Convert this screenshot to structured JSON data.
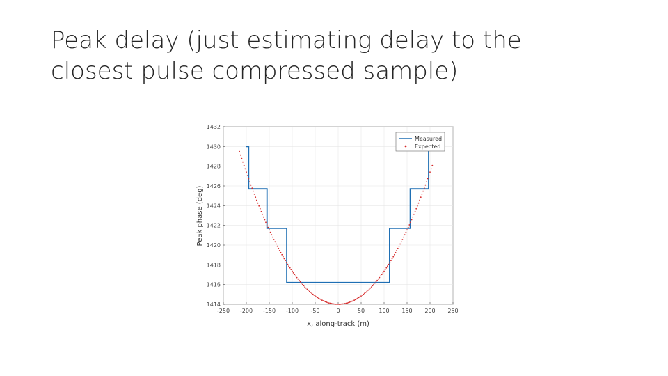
{
  "slide": {
    "title_line1": "Peak delay (just estimating delay to the",
    "title_line2": "closest pulse compressed sample)"
  },
  "chart_data": {
    "type": "line",
    "xlabel": "x, along-track (m)",
    "ylabel": "Peak phase (deg)",
    "xlim": [
      -250,
      250
    ],
    "ylim": [
      1414,
      1432
    ],
    "x_ticks": [
      -250,
      -200,
      -150,
      -100,
      -50,
      0,
      50,
      100,
      150,
      200,
      250
    ],
    "y_ticks": [
      1414,
      1416,
      1418,
      1420,
      1422,
      1424,
      1426,
      1428,
      1430,
      1432
    ],
    "grid": true,
    "legend": {
      "position": "top-right",
      "entries": [
        "Measured",
        "Expected"
      ]
    },
    "series": [
      {
        "name": "Measured",
        "style": "step-line",
        "color": "#1f6fb4",
        "x": [
          -200,
          -195,
          -195,
          -155,
          -155,
          -112,
          -112,
          112,
          112,
          157,
          157,
          197,
          197,
          200
        ],
        "y": [
          1430.0,
          1430.0,
          1425.7,
          1425.7,
          1421.7,
          1421.7,
          1416.2,
          1416.2,
          1421.7,
          1421.7,
          1425.7,
          1425.7,
          1430.0,
          1430.0
        ]
      },
      {
        "name": "Expected",
        "style": "dots",
        "color": "#d62a2a",
        "x_range": [
          -215,
          205
        ],
        "x_step": 2.5,
        "formula": "y = 1414.0 + 0.000335 * x^2",
        "vertex": {
          "x": 0,
          "y": 1414.0
        },
        "coefficient": 0.000335
      }
    ]
  }
}
